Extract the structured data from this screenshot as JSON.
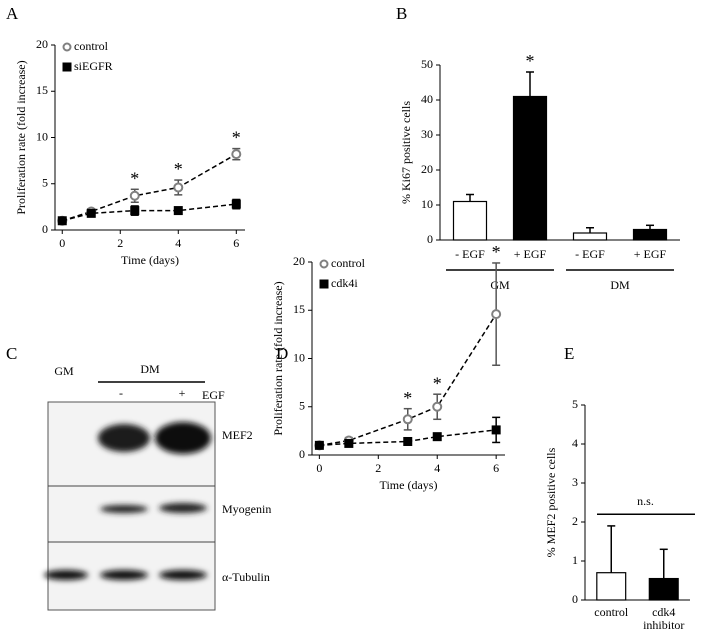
{
  "chart_data": [
    {
      "panel": "A",
      "type": "line",
      "x": [
        0,
        1,
        2.5,
        4,
        6
      ],
      "series": [
        {
          "name": "control",
          "color": "#808080",
          "marker": "open-circle",
          "values": [
            1,
            2,
            3.7,
            4.6,
            8.2
          ],
          "errors": [
            0.3,
            0.3,
            0.7,
            0.8,
            0.6
          ]
        },
        {
          "name": "siEGFR",
          "color": "#000000",
          "marker": "square",
          "values": [
            1,
            1.8,
            2.1,
            2.1,
            2.8
          ],
          "errors": [
            0.2,
            0.3,
            0.5,
            0.3,
            0.5
          ]
        }
      ],
      "xlabel": "Time (days)",
      "ylabel": "Proliferation rate (fold increase)",
      "xlim": [
        -0.25,
        6.3
      ],
      "ylim": [
        0,
        20
      ],
      "xticks": [
        0,
        2,
        4,
        6
      ],
      "yticks": [
        0,
        5,
        10,
        15,
        20
      ],
      "legend": "upper left",
      "significance": {
        "x": [
          2.5,
          4,
          6
        ],
        "labels": [
          "*",
          "*",
          "*"
        ]
      }
    },
    {
      "panel": "B",
      "type": "bar",
      "categories": [
        "- EGF",
        "+ EGF",
        "- EGF",
        "+ EGF"
      ],
      "groups": [
        "GM",
        "DM"
      ],
      "values": [
        11,
        41,
        2,
        3
      ],
      "errors": [
        2,
        7,
        1.5,
        1.2
      ],
      "colors": [
        "#ffffff",
        "#000000",
        "#ffffff",
        "#000000"
      ],
      "ylabel": "% Ki67 positive cells",
      "ylim": [
        0,
        50
      ],
      "yticks": [
        0,
        10,
        20,
        30,
        40,
        50
      ],
      "significance": {
        "index": [
          1
        ],
        "labels": [
          "*"
        ]
      }
    },
    {
      "panel": "D",
      "type": "line",
      "x": [
        0,
        1,
        3,
        4,
        6
      ],
      "series": [
        {
          "name": "control",
          "color": "#808080",
          "marker": "open-circle",
          "values": [
            1,
            1.5,
            3.7,
            5,
            14.6
          ],
          "errors": [
            0.3,
            0.3,
            1.1,
            1.3,
            5.3
          ]
        },
        {
          "name": "cdk4i",
          "color": "#000000",
          "marker": "square",
          "values": [
            1,
            1.2,
            1.4,
            1.9,
            2.6
          ],
          "errors": [
            0.2,
            0.2,
            0.3,
            0.3,
            1.3
          ]
        }
      ],
      "xlabel": "Time (days)",
      "ylabel": "Proliferation rate (fold increase)",
      "xlim": [
        -0.25,
        6.3
      ],
      "ylim": [
        0,
        20
      ],
      "xticks": [
        0,
        2,
        4,
        6
      ],
      "yticks": [
        0,
        5,
        10,
        15,
        20
      ],
      "legend": "upper left",
      "significance": {
        "x": [
          3,
          4,
          6
        ],
        "labels": [
          "*",
          "*",
          "*"
        ]
      }
    },
    {
      "panel": "E",
      "type": "bar",
      "categories": [
        "control",
        "cdk4 inhibitor"
      ],
      "values": [
        0.7,
        0.55
      ],
      "errors": [
        1.2,
        0.75
      ],
      "colors": [
        "#ffffff",
        "#000000"
      ],
      "ylabel": "% MEF2 positive cells",
      "ylim": [
        0,
        5
      ],
      "yticks": [
        0,
        1,
        2,
        3,
        4,
        5
      ],
      "annotation": "n.s."
    }
  ],
  "blot": {
    "panel": "C",
    "conditions": [
      "GM",
      "DM"
    ],
    "treatment": [
      "-",
      "+"
    ],
    "treatment_label": "EGF",
    "bands": [
      "MEF2",
      "Myogenin",
      "α-Tubulin"
    ]
  }
}
